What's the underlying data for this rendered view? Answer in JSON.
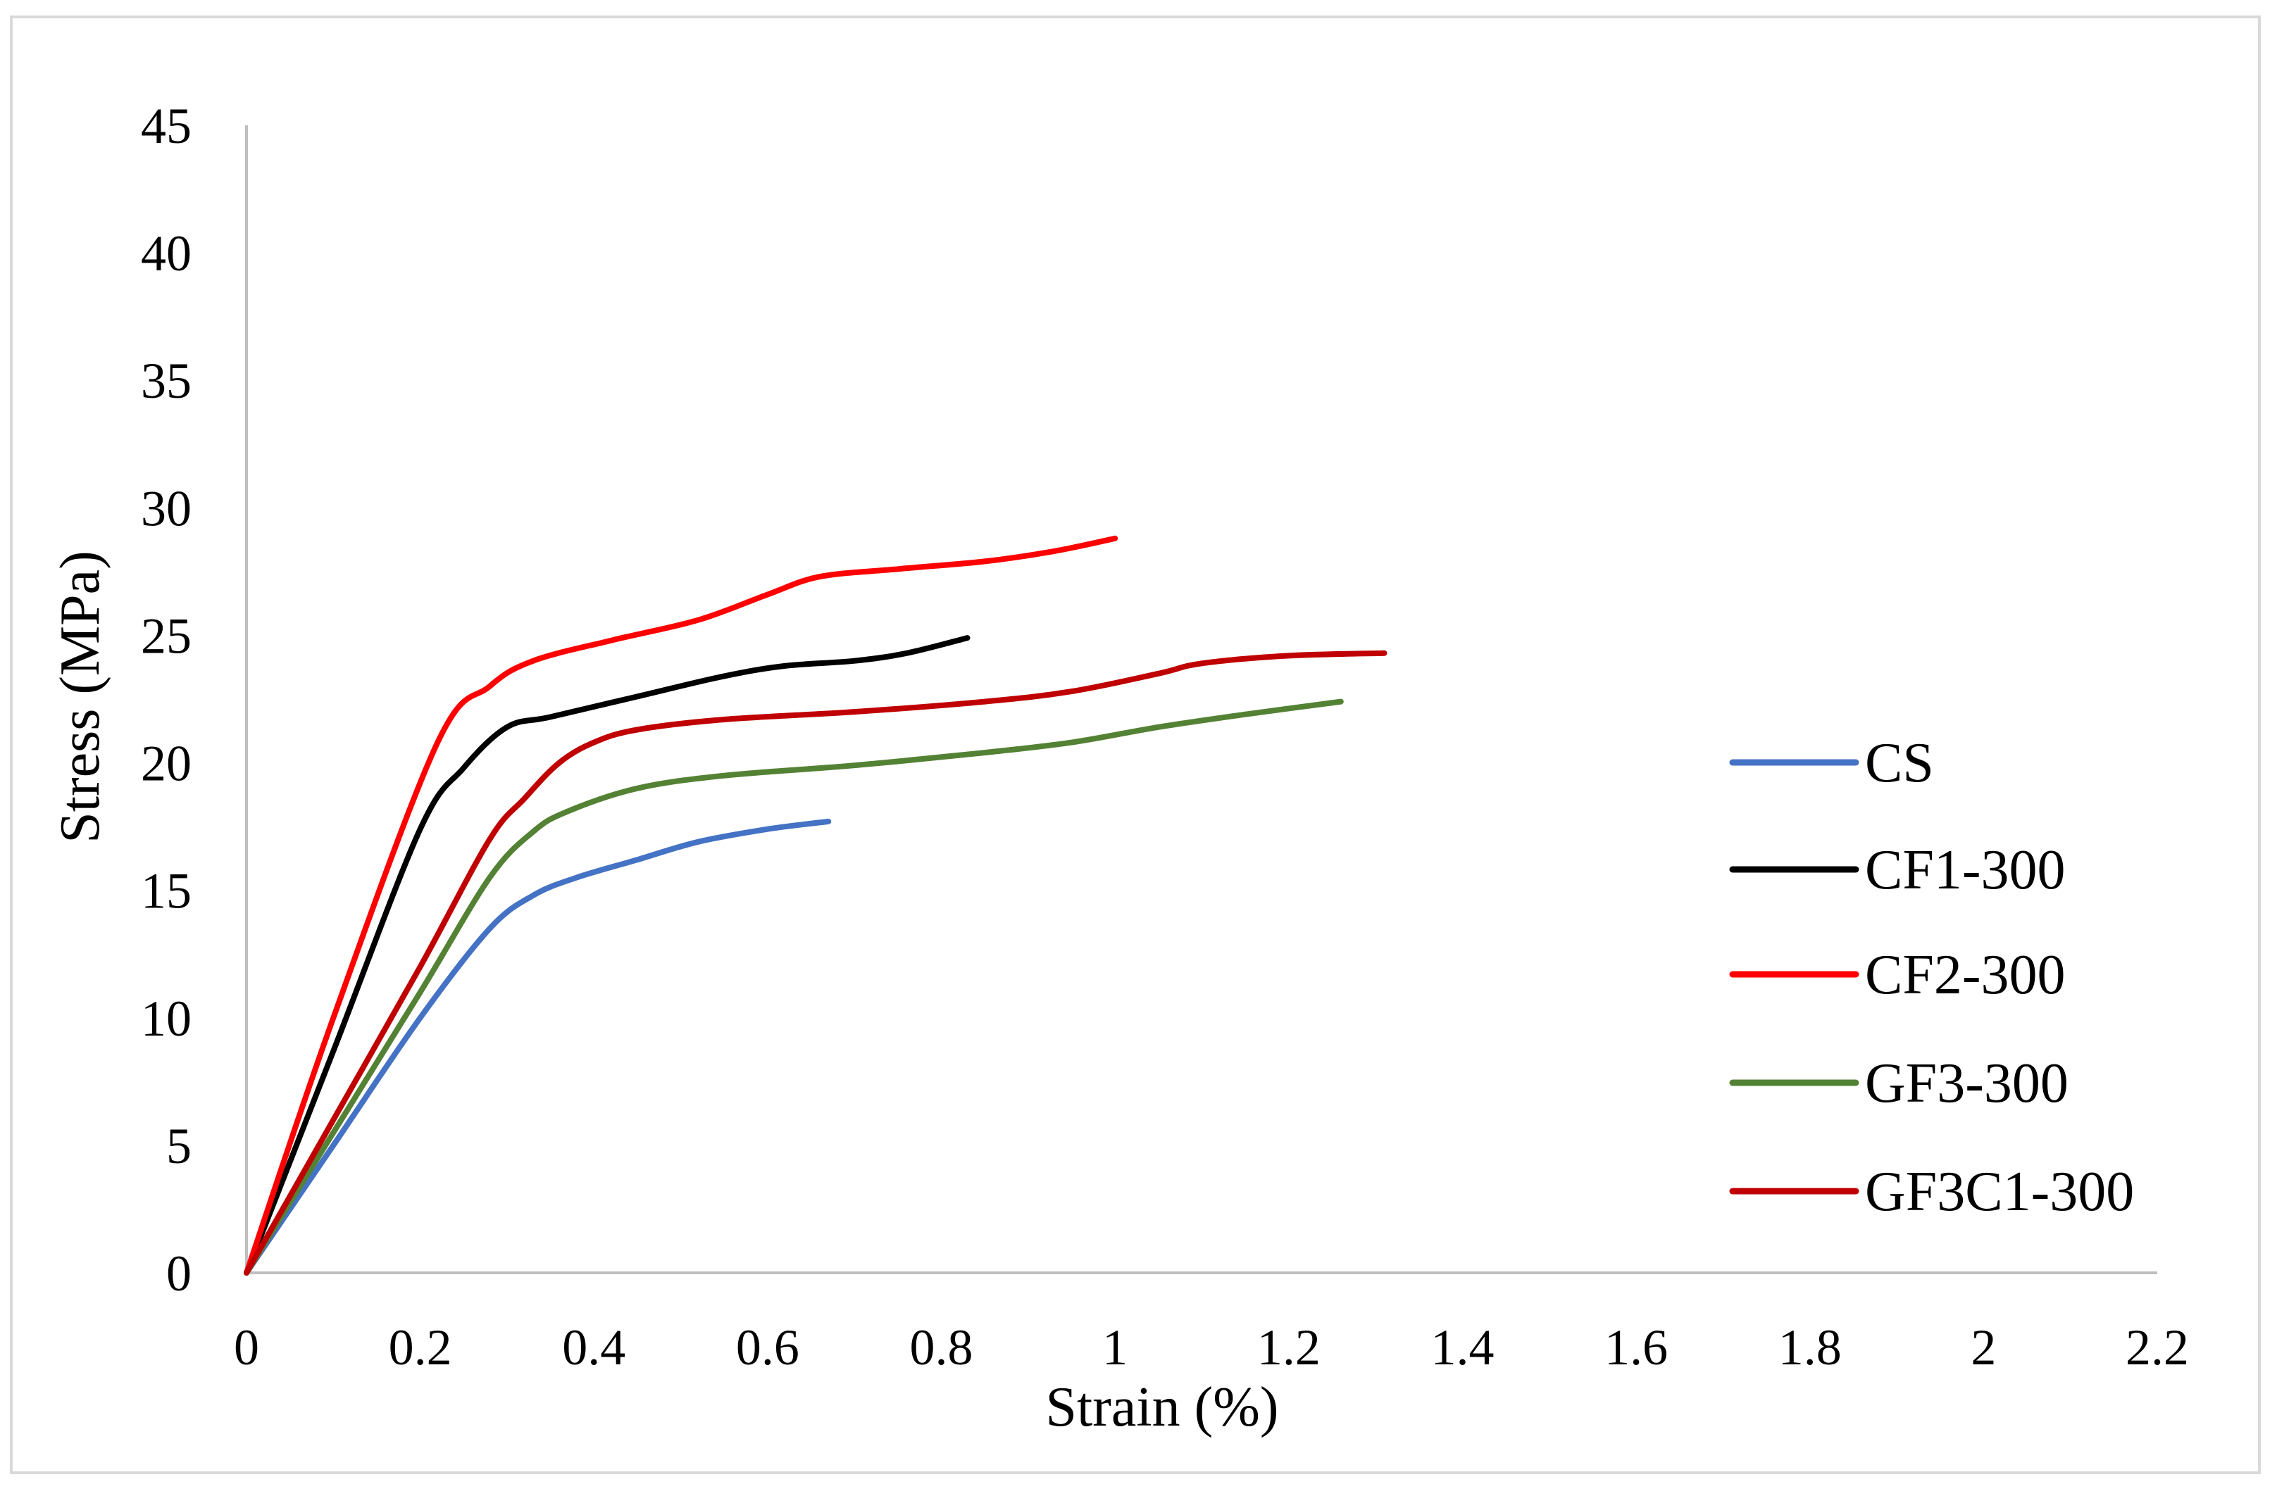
{
  "chart_data": {
    "type": "line",
    "title": "",
    "xlabel": "Strain (%)",
    "ylabel": "Stress (MPa)",
    "xlim": [
      0,
      2.2
    ],
    "ylim": [
      0,
      45
    ],
    "xticks": [
      "0",
      "0.2",
      "0.4",
      "0.6",
      "0.8",
      "1",
      "1.2",
      "1.4",
      "1.6",
      "1.8",
      "2",
      "2.2"
    ],
    "yticks": [
      "0",
      "5",
      "10",
      "15",
      "20",
      "25",
      "30",
      "35",
      "40",
      "45"
    ],
    "grid": false,
    "legend_position": "right",
    "series": [
      {
        "name": "CS",
        "color": "#4472c4",
        "x": [
          0,
          0.1,
          0.2,
          0.28,
          0.33,
          0.38,
          0.45,
          0.52,
          0.6,
          0.67
        ],
        "y": [
          0,
          5,
          10,
          13.5,
          14.8,
          15.5,
          16.2,
          16.9,
          17.4,
          17.7
        ]
      },
      {
        "name": "CF1-300",
        "color": "#000000",
        "x": [
          0,
          0.1,
          0.2,
          0.25,
          0.3,
          0.35,
          0.45,
          0.55,
          0.62,
          0.7,
          0.76,
          0.83
        ],
        "y": [
          0,
          8.7,
          17.4,
          19.8,
          21.4,
          21.8,
          22.6,
          23.4,
          23.8,
          24,
          24.3,
          24.9
        ]
      },
      {
        "name": "CF2-300",
        "color": "#ff0000",
        "x": [
          0,
          0.1,
          0.22,
          0.28,
          0.33,
          0.42,
          0.52,
          0.6,
          0.66,
          0.75,
          0.85,
          0.93,
          1.0
        ],
        "y": [
          0,
          10,
          20.8,
          23,
          24,
          24.8,
          25.6,
          26.6,
          27.3,
          27.6,
          27.9,
          28.3,
          28.8
        ]
      },
      {
        "name": "GF3-300",
        "color": "#548235",
        "x": [
          0,
          0.1,
          0.2,
          0.28,
          0.33,
          0.37,
          0.45,
          0.55,
          0.7,
          0.85,
          0.95,
          1.05,
          1.15,
          1.26
        ],
        "y": [
          0,
          5.5,
          11,
          15.5,
          17.3,
          18.1,
          19,
          19.5,
          19.9,
          20.4,
          20.8,
          21.4,
          21.9,
          22.4
        ]
      },
      {
        "name": "GF3C1-300",
        "color": "#c00000",
        "x": [
          0,
          0.1,
          0.2,
          0.28,
          0.32,
          0.36,
          0.4,
          0.45,
          0.55,
          0.7,
          0.85,
          0.95,
          1.05,
          1.1,
          1.2,
          1.31
        ],
        "y": [
          0,
          6,
          12,
          17,
          18.6,
          20,
          20.8,
          21.3,
          21.7,
          22,
          22.4,
          22.8,
          23.5,
          23.9,
          24.2,
          24.3
        ]
      }
    ]
  }
}
